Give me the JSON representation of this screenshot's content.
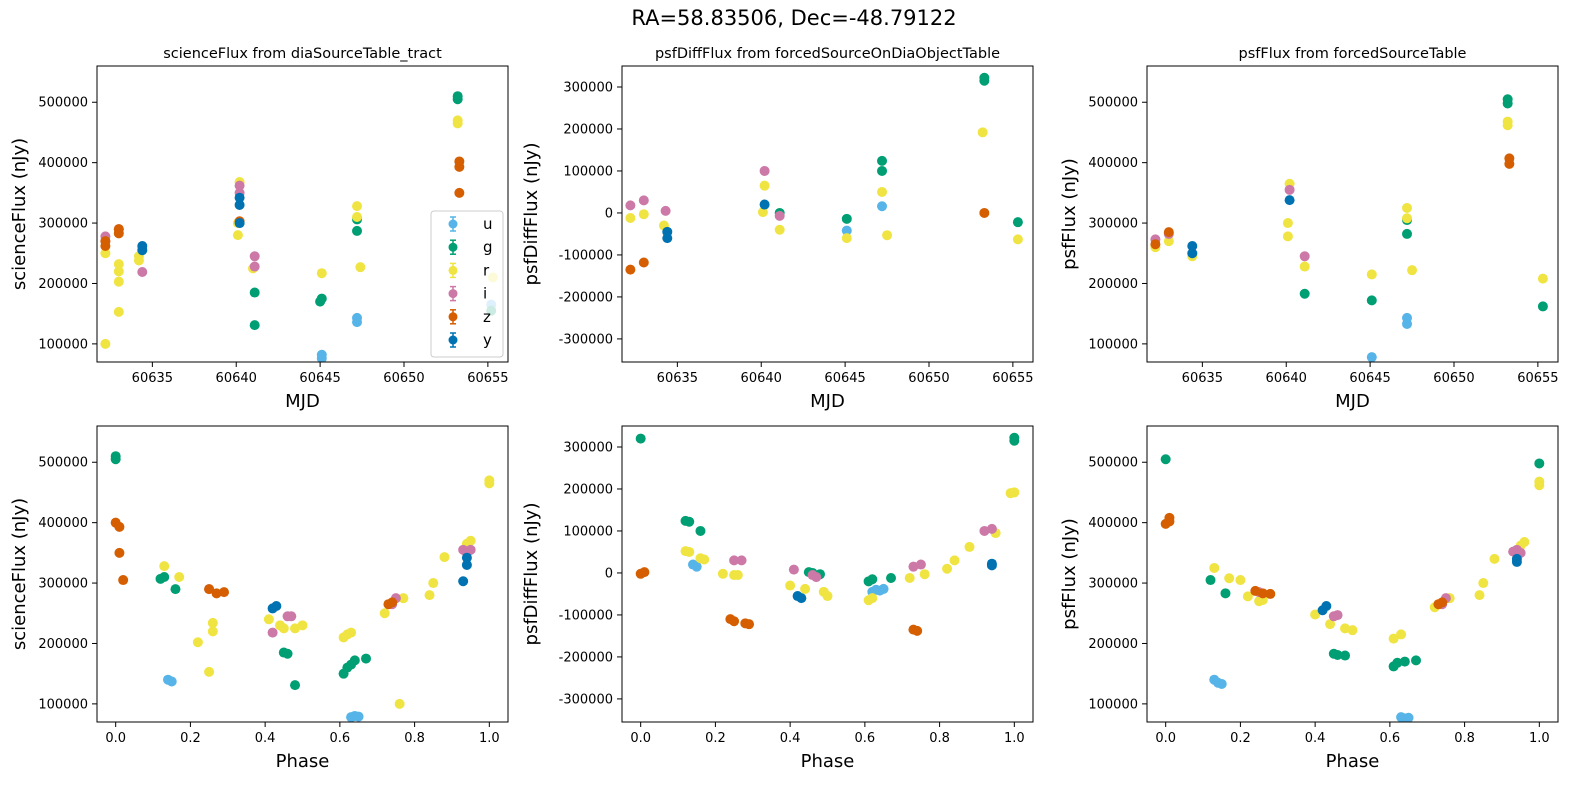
{
  "suptitle": "RA=58.83506, Dec=-48.79122",
  "colors": {
    "u": "#56b4e9",
    "g": "#009e73",
    "r": "#f0e442",
    "i": "#cc79a7",
    "z": "#d55e00",
    "y": "#0072b2"
  },
  "chart_data": [
    {
      "type": "scatter",
      "title": "scienceFlux from diaSourceTable_tract",
      "xlabel": "MJD",
      "ylabel": "scienceFlux (nJy)",
      "xlim": [
        60631.7,
        60656.2
      ],
      "ylim": [
        70000,
        560000
      ],
      "xticks": [
        60635,
        60640,
        60645,
        60650,
        60655
      ],
      "yticks": [
        100000,
        200000,
        300000,
        400000,
        500000
      ],
      "legend": {
        "placement": "lower-right",
        "entries": [
          "u",
          "g",
          "r",
          "i",
          "z",
          "y"
        ]
      },
      "series": [
        {
          "name": "u",
          "x": [
            60645.1,
            60645.1,
            60647.2,
            60647.2,
            60655.2
          ],
          "y": [
            76000,
            82000,
            136000,
            143000,
            165000
          ]
        },
        {
          "name": "g",
          "x": [
            60640.2,
            60641.1,
            60641.1,
            60645.0,
            60645.1,
            60647.2,
            60647.2,
            60653.2,
            60653.2,
            60655.2
          ],
          "y": [
            300000,
            185000,
            131000,
            170000,
            175000,
            287000,
            306000,
            505000,
            510000,
            155000
          ]
        },
        {
          "name": "r",
          "x": [
            60632.2,
            60632.2,
            60633.0,
            60633.0,
            60633.0,
            60633.0,
            60634.2,
            60634.2,
            60640.1,
            60640.1,
            60640.2,
            60641.0,
            60645.1,
            60647.2,
            60647.2,
            60647.4,
            60653.2,
            60653.2,
            60655.3
          ],
          "y": [
            100000,
            250000,
            153000,
            203000,
            220000,
            232000,
            238000,
            245000,
            280000,
            300000,
            368000,
            225000,
            217000,
            310000,
            328000,
            227000,
            465000,
            470000,
            210000
          ]
        },
        {
          "name": "i",
          "x": [
            60632.2,
            60632.2,
            60633.0,
            60634.4,
            60640.2,
            60640.2,
            60641.1,
            60641.1
          ],
          "y": [
            270000,
            278000,
            290000,
            219000,
            350000,
            362000,
            228000,
            245000
          ]
        },
        {
          "name": "z",
          "x": [
            60632.2,
            60632.2,
            60633.0,
            60633.0,
            60640.2,
            60653.3,
            60653.3,
            60653.3
          ],
          "y": [
            262000,
            270000,
            283000,
            290000,
            303000,
            350000,
            393000,
            402000
          ]
        },
        {
          "name": "y",
          "x": [
            60634.4,
            60634.4,
            60640.2,
            60640.2,
            60640.2
          ],
          "y": [
            255000,
            262000,
            300000,
            330000,
            342000
          ]
        }
      ]
    },
    {
      "type": "scatter",
      "title": "psfDiffFlux from forcedSourceOnDiaObjectTable",
      "xlabel": "MJD",
      "ylabel": "psfDiffFlux (nJy)",
      "xlim": [
        60631.7,
        60656.2
      ],
      "ylim": [
        -355000,
        350000
      ],
      "xticks": [
        60635,
        60640,
        60645,
        60650,
        60655
      ],
      "yticks": [
        -300000,
        -200000,
        -100000,
        0,
        100000,
        200000,
        300000
      ],
      "series": [
        {
          "name": "u",
          "x": [
            60645.1,
            60647.2
          ],
          "y": [
            -42000,
            16000
          ]
        },
        {
          "name": "g",
          "x": [
            60641.1,
            60645.1,
            60647.2,
            60647.2,
            60653.3,
            60653.3,
            60655.3
          ],
          "y": [
            0,
            -14000,
            100000,
            124000,
            315000,
            322000,
            -22000
          ]
        },
        {
          "name": "r",
          "x": [
            60632.2,
            60633.0,
            60634.2,
            60640.1,
            60640.2,
            60641.1,
            60645.1,
            60647.2,
            60647.5,
            60653.2,
            60655.3
          ],
          "y": [
            -12000,
            -3000,
            -30000,
            2000,
            65000,
            -40000,
            -60000,
            50000,
            -53000,
            192000,
            -63000
          ]
        },
        {
          "name": "i",
          "x": [
            60632.2,
            60633.0,
            60634.3,
            60640.2,
            60641.1
          ],
          "y": [
            18000,
            30000,
            5000,
            100000,
            -7000
          ]
        },
        {
          "name": "z",
          "x": [
            60632.2,
            60633.0,
            60653.3
          ],
          "y": [
            -135000,
            -118000,
            0
          ]
        },
        {
          "name": "y",
          "x": [
            60634.4,
            60634.4,
            60640.2
          ],
          "y": [
            -45000,
            -60000,
            20000
          ]
        }
      ]
    },
    {
      "type": "scatter",
      "title": "psfFlux from forcedSourceTable",
      "xlabel": "MJD",
      "ylabel": "psfFlux (nJy)",
      "xlim": [
        60631.7,
        60656.2
      ],
      "ylim": [
        70000,
        560000
      ],
      "xticks": [
        60635,
        60640,
        60645,
        60650,
        60655
      ],
      "yticks": [
        100000,
        200000,
        300000,
        400000,
        500000
      ],
      "series": [
        {
          "name": "u",
          "x": [
            60645.1,
            60647.2,
            60647.2
          ],
          "y": [
            78000,
            133000,
            143000
          ]
        },
        {
          "name": "g",
          "x": [
            60641.1,
            60645.1,
            60647.2,
            60647.2,
            60653.2,
            60653.2,
            60655.3
          ],
          "y": [
            183000,
            172000,
            282000,
            305000,
            498000,
            505000,
            162000
          ]
        },
        {
          "name": "r",
          "x": [
            60632.2,
            60633.0,
            60634.4,
            60640.1,
            60640.1,
            60640.2,
            60641.1,
            60645.1,
            60647.2,
            60647.2,
            60647.5,
            60653.2,
            60653.2,
            60655.3
          ],
          "y": [
            260000,
            270000,
            245000,
            278000,
            300000,
            365000,
            228000,
            215000,
            308000,
            325000,
            222000,
            462000,
            468000,
            208000
          ]
        },
        {
          "name": "i",
          "x": [
            60632.2,
            60633.0,
            60640.2,
            60641.1
          ],
          "y": [
            273000,
            282000,
            355000,
            245000
          ]
        },
        {
          "name": "z",
          "x": [
            60632.2,
            60633.0,
            60653.3,
            60653.3
          ],
          "y": [
            265000,
            285000,
            398000,
            407000
          ]
        },
        {
          "name": "y",
          "x": [
            60634.4,
            60634.4,
            60640.2
          ],
          "y": [
            250000,
            262000,
            338000
          ]
        }
      ]
    },
    {
      "type": "scatter",
      "xlabel": "Phase",
      "ylabel": "scienceFlux (nJy)",
      "xlim": [
        -0.05,
        1.05
      ],
      "ylim": [
        70000,
        560000
      ],
      "xticks": [
        0.0,
        0.2,
        0.4,
        0.6,
        0.8,
        1.0
      ],
      "yticks": [
        100000,
        200000,
        300000,
        400000,
        500000
      ],
      "series": [
        {
          "name": "u",
          "x": [
            0.14,
            0.15,
            0.63,
            0.64,
            0.65
          ],
          "y": [
            140000,
            137000,
            78000,
            80000,
            79000
          ]
        },
        {
          "name": "g",
          "x": [
            0.0,
            0.0,
            0.12,
            0.13,
            0.16,
            0.45,
            0.46,
            0.48,
            0.61,
            0.62,
            0.63,
            0.64,
            0.67
          ],
          "y": [
            505000,
            510000,
            307000,
            310000,
            290000,
            185000,
            183000,
            131000,
            150000,
            160000,
            165000,
            172000,
            175000
          ]
        },
        {
          "name": "r",
          "x": [
            0.13,
            0.17,
            0.22,
            0.25,
            0.26,
            0.26,
            0.41,
            0.44,
            0.45,
            0.48,
            0.5,
            0.61,
            0.62,
            0.63,
            0.72,
            0.76,
            0.77,
            0.84,
            0.85,
            0.88,
            0.94,
            0.95,
            1.0,
            1.0
          ],
          "y": [
            328000,
            310000,
            202000,
            153000,
            234000,
            220000,
            240000,
            230000,
            225000,
            225000,
            230000,
            210000,
            215000,
            218000,
            250000,
            100000,
            275000,
            280000,
            300000,
            343000,
            365000,
            370000,
            465000,
            470000
          ]
        },
        {
          "name": "i",
          "x": [
            0.25,
            0.42,
            0.46,
            0.47,
            0.74,
            0.75,
            0.93,
            0.94,
            0.95
          ],
          "y": [
            290000,
            218000,
            245000,
            245000,
            265000,
            275000,
            355000,
            350000,
            355000
          ]
        },
        {
          "name": "z",
          "x": [
            0.0,
            0.01,
            0.01,
            0.02,
            0.25,
            0.27,
            0.29,
            0.73,
            0.74
          ],
          "y": [
            400000,
            393000,
            350000,
            305000,
            290000,
            283000,
            285000,
            265000,
            268000
          ]
        },
        {
          "name": "y",
          "x": [
            0.42,
            0.43,
            0.93,
            0.94,
            0.94
          ],
          "y": [
            258000,
            262000,
            303000,
            330000,
            342000
          ]
        }
      ]
    },
    {
      "type": "scatter",
      "xlabel": "Phase",
      "ylabel": "psfDiffFlux (nJy)",
      "xlim": [
        -0.05,
        1.05
      ],
      "ylim": [
        -355000,
        350000
      ],
      "xticks": [
        0.0,
        0.2,
        0.4,
        0.6,
        0.8,
        1.0
      ],
      "yticks": [
        -300000,
        -200000,
        -100000,
        0,
        100000,
        200000,
        300000
      ],
      "series": [
        {
          "name": "u",
          "x": [
            0.14,
            0.15,
            0.62,
            0.63,
            0.64,
            0.65
          ],
          "y": [
            20000,
            15000,
            -45000,
            -40000,
            -42000,
            -38000
          ]
        },
        {
          "name": "g",
          "x": [
            0.0,
            0.12,
            0.13,
            0.16,
            0.45,
            0.46,
            0.48,
            0.61,
            0.62,
            0.67,
            1.0,
            1.0
          ],
          "y": [
            320000,
            124000,
            122000,
            100000,
            2000,
            0,
            -3000,
            -20000,
            -15000,
            -12000,
            315000,
            322000
          ]
        },
        {
          "name": "r",
          "x": [
            0.12,
            0.13,
            0.16,
            0.17,
            0.22,
            0.25,
            0.26,
            0.4,
            0.44,
            0.49,
            0.5,
            0.61,
            0.62,
            0.72,
            0.76,
            0.82,
            0.84,
            0.88,
            0.95,
            0.99,
            1.0
          ],
          "y": [
            52000,
            50000,
            35000,
            32000,
            -2000,
            -5000,
            -5000,
            -30000,
            -38000,
            -45000,
            -55000,
            -65000,
            -60000,
            -12000,
            -3000,
            10000,
            30000,
            62000,
            95000,
            190000,
            192000
          ]
        },
        {
          "name": "i",
          "x": [
            0.25,
            0.27,
            0.41,
            0.46,
            0.47,
            0.73,
            0.75,
            0.92,
            0.94
          ],
          "y": [
            30000,
            30000,
            8000,
            -5000,
            -10000,
            15000,
            20000,
            100000,
            105000
          ]
        },
        {
          "name": "z",
          "x": [
            0.0,
            0.01,
            0.24,
            0.25,
            0.28,
            0.29,
            0.73,
            0.74
          ],
          "y": [
            -2000,
            2000,
            -110000,
            -115000,
            -120000,
            -122000,
            -135000,
            -138000
          ]
        },
        {
          "name": "y",
          "x": [
            0.42,
            0.43,
            0.94,
            0.94
          ],
          "y": [
            -55000,
            -60000,
            18000,
            22000
          ]
        }
      ]
    },
    {
      "type": "scatter",
      "xlabel": "Phase",
      "ylabel": "psfFlux (nJy)",
      "xlim": [
        -0.05,
        1.05
      ],
      "ylim": [
        70000,
        560000
      ],
      "xticks": [
        0.0,
        0.2,
        0.4,
        0.6,
        0.8,
        1.0
      ],
      "yticks": [
        100000,
        200000,
        300000,
        400000,
        500000
      ],
      "series": [
        {
          "name": "u",
          "x": [
            0.13,
            0.14,
            0.15,
            0.63,
            0.64,
            0.65
          ],
          "y": [
            140000,
            135000,
            133000,
            78000,
            76000,
            77000
          ]
        },
        {
          "name": "g",
          "x": [
            0.0,
            0.12,
            0.16,
            0.45,
            0.46,
            0.48,
            0.61,
            0.62,
            0.64,
            0.67,
            1.0
          ],
          "y": [
            505000,
            305000,
            283000,
            183000,
            181000,
            180000,
            162000,
            168000,
            170000,
            172000,
            498000
          ]
        },
        {
          "name": "r",
          "x": [
            0.13,
            0.17,
            0.2,
            0.22,
            0.25,
            0.26,
            0.4,
            0.44,
            0.48,
            0.5,
            0.61,
            0.63,
            0.72,
            0.76,
            0.84,
            0.85,
            0.88,
            0.95,
            0.96,
            1.0,
            1.0
          ],
          "y": [
            325000,
            308000,
            305000,
            278000,
            270000,
            272000,
            248000,
            232000,
            225000,
            222000,
            208000,
            215000,
            260000,
            275000,
            280000,
            300000,
            340000,
            362000,
            368000,
            462000,
            468000
          ]
        },
        {
          "name": "i",
          "x": [
            0.25,
            0.45,
            0.46,
            0.74,
            0.75,
            0.93,
            0.94,
            0.95
          ],
          "y": [
            285000,
            245000,
            247000,
            265000,
            275000,
            352000,
            355000,
            350000
          ]
        },
        {
          "name": "z",
          "x": [
            0.0,
            0.01,
            0.01,
            0.24,
            0.26,
            0.28,
            0.73,
            0.74
          ],
          "y": [
            398000,
            402000,
            408000,
            287000,
            283000,
            282000,
            265000,
            268000
          ]
        },
        {
          "name": "y",
          "x": [
            0.42,
            0.43,
            0.94,
            0.94
          ],
          "y": [
            255000,
            262000,
            335000,
            340000
          ]
        }
      ]
    }
  ]
}
